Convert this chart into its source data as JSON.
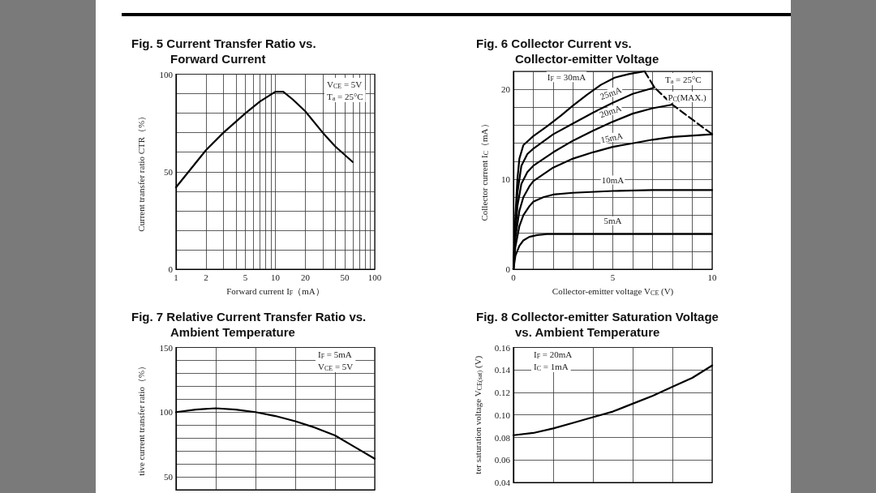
{
  "chart_data": [
    {
      "type": "line",
      "title": "Fig. 5 Current Transfer Ratio vs.\nForward Current",
      "xlabel": "Forward current I$_{F}$（mA）",
      "ylabel": "Current transfer ratio CTR（%）",
      "annotations": [
        "V$_{CE}$ = 5V",
        "T$_{a}$ = 25°C"
      ],
      "x": [
        1,
        2,
        3,
        5,
        7,
        10,
        12,
        15,
        20,
        30,
        40,
        60
      ],
      "series": [
        {
          "color": "#000000",
          "values": [
            42,
            61,
            70,
            80,
            86,
            91,
            91,
            87,
            81,
            70,
            63,
            55
          ]
        }
      ],
      "xlim": [
        1,
        100
      ],
      "xticks": [
        1,
        2,
        {
          "value": 3,
          "label": null
        },
        {
          "value": 4,
          "label": null
        },
        5,
        {
          "value": 6,
          "label": null
        },
        {
          "value": 7,
          "label": null
        },
        {
          "value": 8,
          "label": null
        },
        {
          "value": 9,
          "label": null
        },
        10,
        20,
        {
          "value": 30,
          "label": null
        },
        {
          "value": 40,
          "label": null
        },
        50,
        {
          "value": 60,
          "label": null
        },
        {
          "value": 70,
          "label": null
        },
        {
          "value": 80,
          "label": null
        },
        {
          "value": 90,
          "label": null
        },
        100
      ],
      "ylim": [
        0,
        100
      ],
      "yticks": [
        0,
        {
          "value": 10,
          "label": null
        },
        {
          "value": 20,
          "label": null
        },
        {
          "value": 30,
          "label": null
        },
        {
          "value": 40,
          "label": null
        },
        50,
        {
          "value": 60,
          "label": null
        },
        {
          "value": 70,
          "label": null
        },
        {
          "value": 80,
          "label": null
        },
        {
          "value": 90,
          "label": null
        },
        100
      ],
      "log": "x",
      "grid": true,
      "marker": "none",
      "line_style": "solid"
    },
    {
      "type": "line",
      "title": "Fig. 6 Collector Current vs.\nCollector-emitter Voltage",
      "xlabel": "Collector-emitter voltage V$_{CE}$ (V)",
      "ylabel": "Collector current I$_{C}$（mA）",
      "annotations": [
        "T$_{a}$ = 25°C"
      ],
      "series": [
        {
          "name": "I$_{F}$ = 30mA",
          "color": "#000000",
          "x": [
            0,
            0.1,
            0.2,
            0.3,
            0.5,
            1,
            1.7,
            2.4,
            3,
            3.7,
            4.4,
            5.1,
            5.8,
            6.6
          ],
          "values": [
            0,
            6,
            10,
            12.3,
            13.8,
            14.8,
            15.9,
            17.1,
            18.2,
            19.4,
            20.5,
            21.3,
            21.7,
            22
          ]
        },
        {
          "name": "25mA",
          "color": "#000000",
          "x": [
            0,
            0.1,
            0.2,
            0.4,
            0.7,
            1,
            2,
            3,
            4,
            5,
            6,
            7.1
          ],
          "values": [
            0,
            5,
            8.5,
            11.5,
            12.8,
            13.4,
            15,
            16.2,
            17.4,
            18.5,
            19.5,
            20.2
          ]
        },
        {
          "name": "20mA",
          "color": "#000000",
          "x": [
            0,
            0.1,
            0.2,
            0.4,
            0.7,
            1,
            2,
            3,
            4,
            5,
            6,
            7,
            8
          ],
          "values": [
            0,
            4,
            7,
            9.5,
            10.8,
            11.5,
            13,
            14.3,
            15.4,
            16.4,
            17.3,
            17.9,
            18.3
          ]
        },
        {
          "name": "15mA",
          "color": "#000000",
          "x": [
            0,
            0.1,
            0.3,
            0.5,
            0.8,
            1,
            2,
            3,
            4,
            5,
            6,
            7,
            8,
            10
          ],
          "values": [
            0,
            3.5,
            6.5,
            8,
            9.2,
            9.8,
            11.3,
            12.3,
            13,
            13.6,
            14,
            14.4,
            14.7,
            15
          ]
        },
        {
          "name": "10mA",
          "color": "#000000",
          "x": [
            0,
            0.1,
            0.3,
            0.5,
            0.8,
            1,
            1.5,
            2,
            3,
            5,
            7,
            10
          ],
          "values": [
            0,
            2.5,
            4.8,
            6,
            7,
            7.5,
            8,
            8.3,
            8.5,
            8.7,
            8.8,
            8.8
          ]
        },
        {
          "name": "5mA",
          "color": "#000000",
          "x": [
            0,
            0.1,
            0.3,
            0.5,
            0.8,
            1.2,
            1.7,
            5,
            10
          ],
          "values": [
            0,
            1.5,
            2.6,
            3.2,
            3.6,
            3.8,
            3.9,
            3.9,
            3.9
          ]
        },
        {
          "name": "P$_{C}$(MAX.)",
          "color": "#000000",
          "line_style": "dashed",
          "x": [
            6.6,
            7.1,
            8,
            10
          ],
          "values": [
            22,
            20.2,
            18.3,
            15
          ]
        }
      ],
      "xlim": [
        0,
        10
      ],
      "xticks": [
        0,
        {
          "value": 1,
          "label": null
        },
        {
          "value": 2,
          "label": null
        },
        {
          "value": 3,
          "label": null
        },
        {
          "value": 4,
          "label": null
        },
        5,
        {
          "value": 6,
          "label": null
        },
        {
          "value": 7,
          "label": null
        },
        {
          "value": 8,
          "label": null
        },
        {
          "value": 9,
          "label": null
        },
        10
      ],
      "ylim": [
        0,
        22
      ],
      "yticks": [
        0,
        {
          "value": 2,
          "label": null
        },
        {
          "value": 4,
          "label": null
        },
        {
          "value": 6,
          "label": null
        },
        {
          "value": 8,
          "label": null
        },
        10,
        {
          "value": 12,
          "label": null
        },
        {
          "value": 14,
          "label": null
        },
        {
          "value": 16,
          "label": null
        },
        {
          "value": 18,
          "label": null
        },
        20,
        {
          "value": 22,
          "label": null
        }
      ],
      "grid": true,
      "marker": "none",
      "line_style": "solid"
    },
    {
      "type": "line",
      "title": "Fig. 7 Relative Current Transfer Ratio vs.\nAmbient Temperature",
      "ylabel": "tive current transfer ratio（%）",
      "annotations": [
        "I$_{F}$ = 5mA",
        "V$_{CE}$ = 5V"
      ],
      "categories": [
        null,
        null,
        null,
        null,
        null,
        null,
        null,
        null,
        null,
        null,
        null
      ],
      "series": [
        {
          "color": "#000000",
          "values": [
            100,
            102,
            103,
            102,
            100,
            97,
            93,
            88,
            82,
            73,
            64
          ]
        }
      ],
      "ylim": [
        40,
        150
      ],
      "yticks": [
        {
          "value": 40,
          "label": null
        },
        50,
        {
          "value": 60,
          "label": null
        },
        {
          "value": 70,
          "label": null
        },
        {
          "value": 80,
          "label": null
        },
        {
          "value": 90,
          "label": null
        },
        100,
        {
          "value": 110,
          "label": null
        },
        {
          "value": 120,
          "label": null
        },
        {
          "value": 130,
          "label": null
        },
        {
          "value": 140,
          "label": null
        },
        150
      ],
      "tick_labels": "y",
      "grid": true,
      "marker": "none",
      "line_style": "solid"
    },
    {
      "type": "line",
      "title": "Fig. 8 Collector-emitter Saturation Voltage\nvs. Ambient Temperature",
      "ylabel": "ter saturation voltage V$_{CE(sat)}$ (V)",
      "annotations": [
        "I$_{F}$ = 20mA",
        "I$_{C}$ = 1mA"
      ],
      "categories": [
        null,
        null,
        null,
        null,
        null,
        null,
        null,
        null,
        null,
        null,
        null
      ],
      "series": [
        {
          "color": "#000000",
          "values": [
            0.082,
            0.084,
            0.088,
            0.093,
            0.098,
            0.103,
            0.11,
            0.117,
            0.125,
            0.133,
            0.144
          ]
        }
      ],
      "ylim": [
        0.04,
        0.16
      ],
      "yticks": [
        0.04,
        0.06,
        0.08,
        {
          "value": 0.1,
          "label": "0.10"
        },
        0.12,
        0.14,
        0.16
      ],
      "tick_labels": "y",
      "grid": true,
      "marker": "none",
      "line_style": "solid"
    }
  ]
}
